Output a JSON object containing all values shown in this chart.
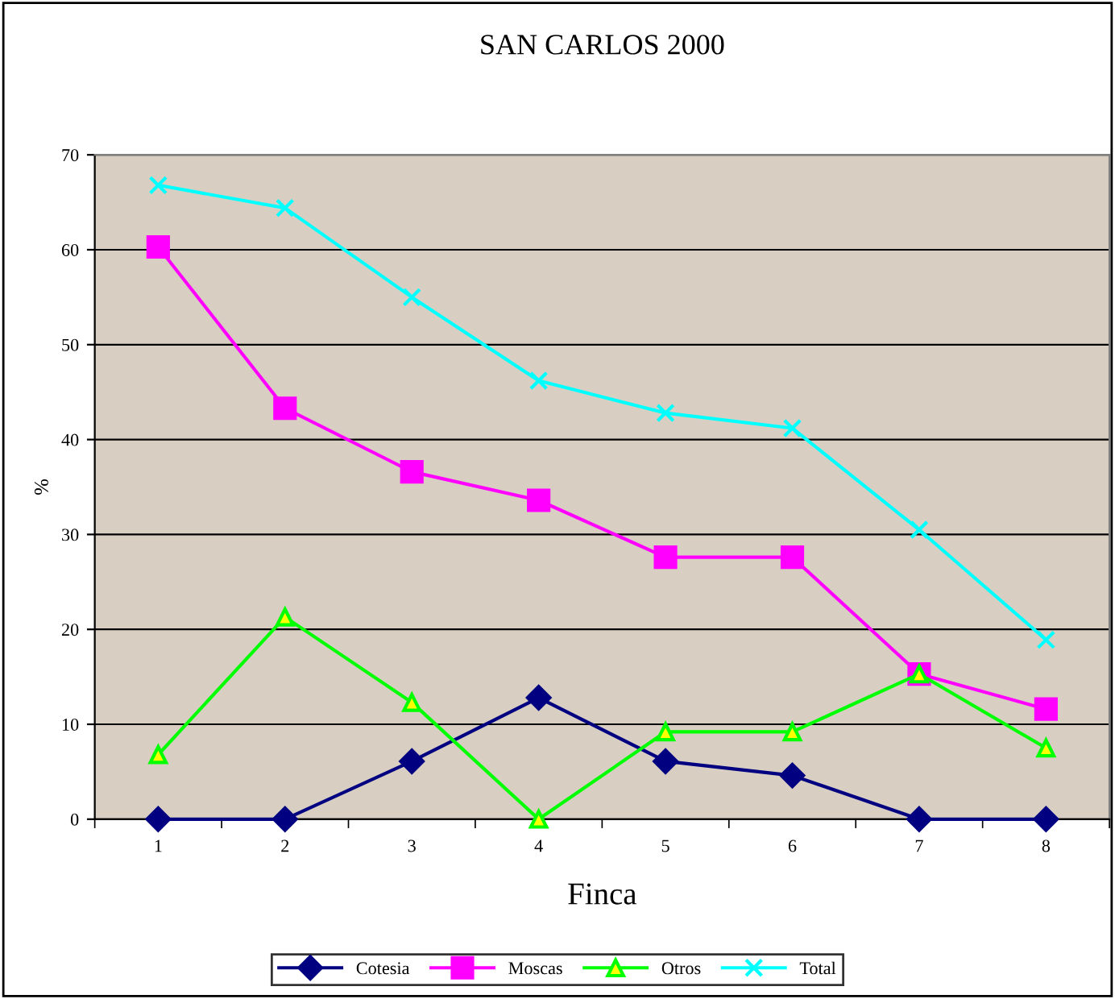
{
  "chart_data": {
    "type": "line",
    "title": "SAN CARLOS 2000",
    "xlabel": "Finca",
    "ylabel": "%",
    "categories": [
      "1",
      "2",
      "3",
      "4",
      "5",
      "6",
      "7",
      "8"
    ],
    "ylim": [
      0,
      70
    ],
    "yticks": [
      0,
      10,
      20,
      30,
      40,
      50,
      60,
      70
    ],
    "grid": "y",
    "legend": "bottom",
    "series": [
      {
        "name": "Cotesia",
        "color": "#000080",
        "marker": "diamond",
        "values": [
          0,
          0,
          6.1,
          12.8,
          6.1,
          4.6,
          0,
          0
        ]
      },
      {
        "name": "Moscas",
        "color": "#ff00ff",
        "marker": "square",
        "values": [
          60.3,
          43.3,
          36.6,
          33.6,
          27.6,
          27.6,
          15.3,
          11.6
        ]
      },
      {
        "name": "Otros",
        "color": "#00ff00",
        "marker": "triangle",
        "values": [
          6.8,
          21.3,
          12.3,
          0,
          9.2,
          9.2,
          15.3,
          7.5
        ]
      },
      {
        "name": "Total",
        "color": "#00ffff",
        "marker": "cross",
        "values": [
          66.8,
          64.4,
          55.0,
          46.2,
          42.8,
          41.2,
          30.5,
          18.9
        ]
      }
    ]
  }
}
